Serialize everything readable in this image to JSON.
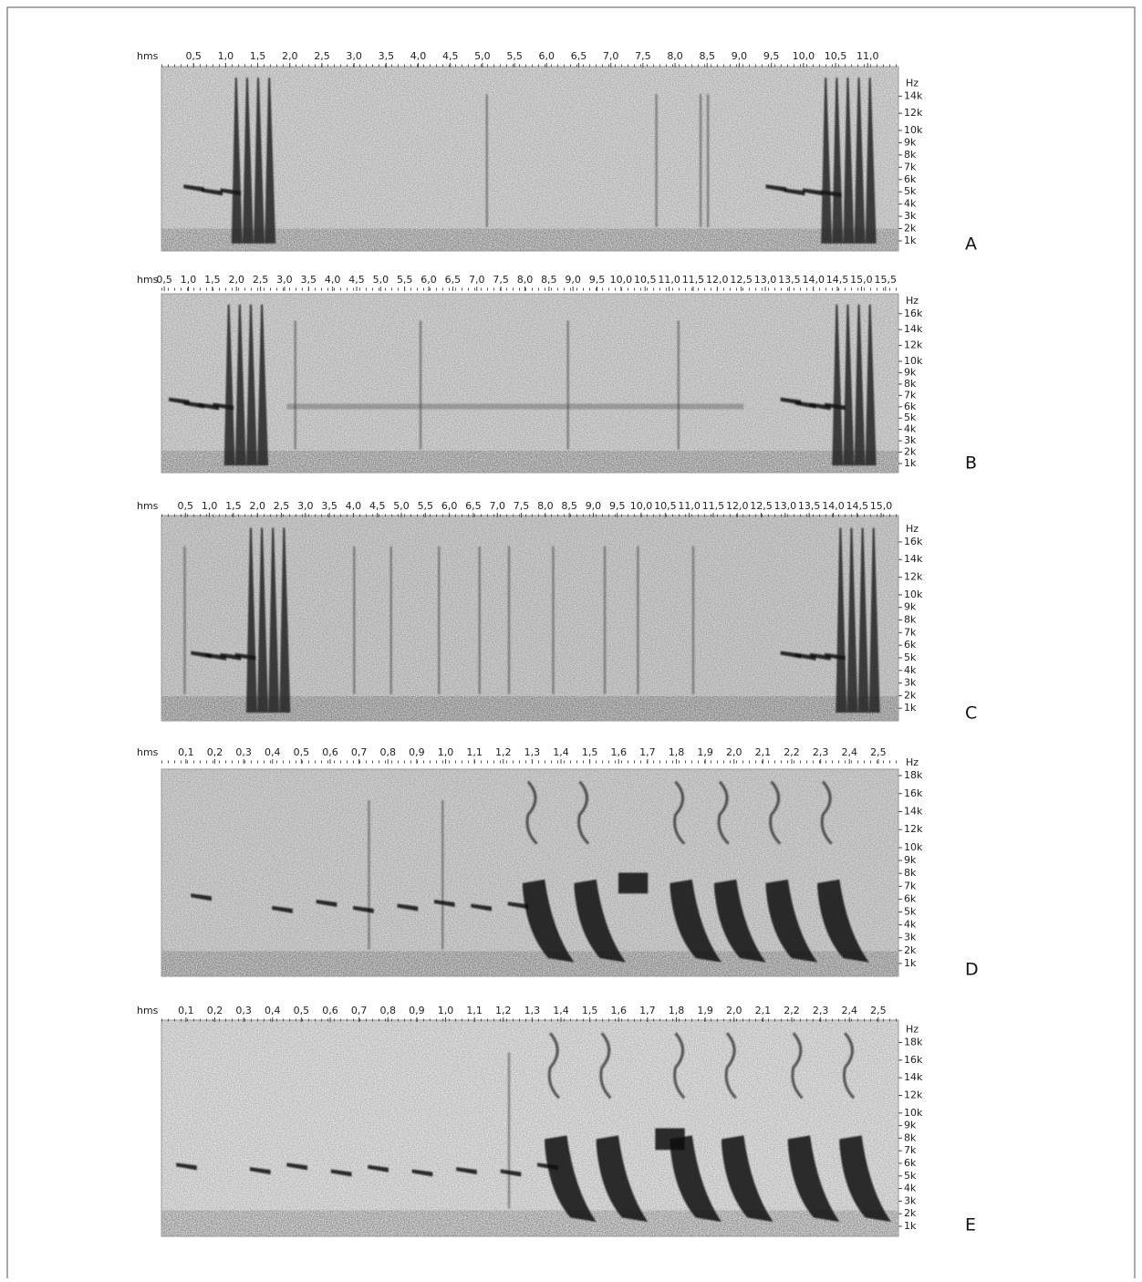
{
  "panels": [
    {
      "label": "A",
      "x_axis": {
        "title": "hms",
        "range": [
          0,
          11.48
        ],
        "ticks": [
          {
            "value": 0.5,
            "label": "0,5"
          },
          {
            "value": 1.0,
            "label": "1,0"
          },
          {
            "value": 1.5,
            "label": "1,5"
          },
          {
            "value": 2.0,
            "label": "2,0"
          },
          {
            "value": 2.5,
            "label": "2,5"
          },
          {
            "value": 3.0,
            "label": "3,0"
          },
          {
            "value": 3.5,
            "label": "3,5"
          },
          {
            "value": 4.0,
            "label": "4,0"
          },
          {
            "value": 4.5,
            "label": "4,5"
          },
          {
            "value": 5.0,
            "label": "5,0"
          },
          {
            "value": 5.5,
            "label": "5,5"
          },
          {
            "value": 6.0,
            "label": "6,0"
          },
          {
            "value": 6.5,
            "label": "6,5"
          },
          {
            "value": 7.0,
            "label": "7,0"
          },
          {
            "value": 7.5,
            "label": "7,5"
          },
          {
            "value": 8.0,
            "label": "8,0"
          },
          {
            "value": 8.5,
            "label": "8,5"
          },
          {
            "value": 9.0,
            "label": "9,0"
          },
          {
            "value": 9.5,
            "label": "9,5"
          },
          {
            "value": 10.0,
            "label": "10,0"
          },
          {
            "value": 10.5,
            "label": "10,5"
          },
          {
            "value": 11.0,
            "label": "11,0"
          }
        ]
      },
      "y_axis": {
        "title": "Hz",
        "range": [
          180,
          17440
        ],
        "ticks": [
          {
            "value": 1000,
            "label": "1k"
          },
          {
            "value": 2000,
            "label": "2k"
          },
          {
            "value": 3000,
            "label": "3k"
          },
          {
            "value": 4000,
            "label": "4k"
          },
          {
            "value": 5000,
            "label": "5k"
          },
          {
            "value": 6000,
            "label": "6k"
          },
          {
            "value": 7000,
            "label": "7k"
          },
          {
            "value": 8000,
            "label": "8k"
          },
          {
            "value": 9000,
            "label": "9k"
          },
          {
            "value": 10000,
            "label": "10k"
          },
          {
            "value": 12000,
            "label": "12k"
          },
          {
            "value": 14000,
            "label": "14k"
          }
        ]
      }
    },
    {
      "label": "B",
      "x_axis": {
        "title": "hms",
        "range": [
          0.44,
          15.77
        ],
        "ticks": [
          {
            "value": 0.5,
            "label": "0,5"
          },
          {
            "value": 1.0,
            "label": "1,0"
          },
          {
            "value": 1.5,
            "label": "1,5"
          },
          {
            "value": 2.0,
            "label": "2,0"
          },
          {
            "value": 2.5,
            "label": "2,5"
          },
          {
            "value": 3.0,
            "label": "3,0"
          },
          {
            "value": 3.5,
            "label": "3,5"
          },
          {
            "value": 4.0,
            "label": "4,0"
          },
          {
            "value": 4.5,
            "label": "4,5"
          },
          {
            "value": 5.0,
            "label": "5,0"
          },
          {
            "value": 5.5,
            "label": "5,5"
          },
          {
            "value": 6.0,
            "label": "6,0"
          },
          {
            "value": 6.5,
            "label": "6,5"
          },
          {
            "value": 7.0,
            "label": "7,0"
          },
          {
            "value": 7.5,
            "label": "7,5"
          },
          {
            "value": 8.0,
            "label": "8,0"
          },
          {
            "value": 8.5,
            "label": "8,5"
          },
          {
            "value": 9.0,
            "label": "9,0"
          },
          {
            "value": 9.5,
            "label": "9,5"
          },
          {
            "value": 10.0,
            "label": "10,0"
          },
          {
            "value": 10.5,
            "label": "10,5"
          },
          {
            "value": 11.0,
            "label": "11,0"
          },
          {
            "value": 11.5,
            "label": "11,5"
          },
          {
            "value": 12.0,
            "label": "12,0"
          },
          {
            "value": 12.5,
            "label": "12,5"
          },
          {
            "value": 13.0,
            "label": "13,0"
          },
          {
            "value": 13.5,
            "label": "13,5"
          },
          {
            "value": 14.0,
            "label": "14,0"
          },
          {
            "value": 14.5,
            "label": "14,5"
          },
          {
            "value": 15.0,
            "label": "15,0"
          },
          {
            "value": 15.5,
            "label": "15,5"
          }
        ]
      },
      "y_axis": {
        "title": "Hz",
        "range": [
          196,
          18500
        ],
        "ticks": [
          {
            "value": 1000,
            "label": "1k"
          },
          {
            "value": 2000,
            "label": "2k"
          },
          {
            "value": 3000,
            "label": "3k"
          },
          {
            "value": 4000,
            "label": "4k"
          },
          {
            "value": 5000,
            "label": "5k"
          },
          {
            "value": 6000,
            "label": "6k"
          },
          {
            "value": 7000,
            "label": "7k"
          },
          {
            "value": 8000,
            "label": "8k"
          },
          {
            "value": 9000,
            "label": "9k"
          },
          {
            "value": 10000,
            "label": "10k"
          },
          {
            "value": 12000,
            "label": "12k"
          },
          {
            "value": 14000,
            "label": "14k"
          },
          {
            "value": 16000,
            "label": "16k"
          }
        ]
      }
    },
    {
      "label": "C",
      "x_axis": {
        "title": "hms",
        "range": [
          0,
          15.36
        ],
        "ticks": [
          {
            "value": 0.5,
            "label": "0,5"
          },
          {
            "value": 1.0,
            "label": "1,0"
          },
          {
            "value": 1.5,
            "label": "1,5"
          },
          {
            "value": 2.0,
            "label": "2,0"
          },
          {
            "value": 2.5,
            "label": "2,5"
          },
          {
            "value": 3.0,
            "label": "3,0"
          },
          {
            "value": 3.5,
            "label": "3,5"
          },
          {
            "value": 4.0,
            "label": "4,0"
          },
          {
            "value": 4.5,
            "label": "4,5"
          },
          {
            "value": 5.0,
            "label": "5,0"
          },
          {
            "value": 5.5,
            "label": "5,5"
          },
          {
            "value": 6.0,
            "label": "6,0"
          },
          {
            "value": 6.5,
            "label": "6,5"
          },
          {
            "value": 7.0,
            "label": "7,0"
          },
          {
            "value": 7.5,
            "label": "7,5"
          },
          {
            "value": 8.0,
            "label": "8,0"
          },
          {
            "value": 8.5,
            "label": "8,5"
          },
          {
            "value": 9.0,
            "label": "9,0"
          },
          {
            "value": 9.5,
            "label": "9,5"
          },
          {
            "value": 10.0,
            "label": "10,0"
          },
          {
            "value": 10.5,
            "label": "10,5"
          },
          {
            "value": 11.0,
            "label": "11,0"
          },
          {
            "value": 11.5,
            "label": "11,5"
          },
          {
            "value": 12.0,
            "label": "12,0"
          },
          {
            "value": 12.5,
            "label": "12,5"
          },
          {
            "value": 13.0,
            "label": "13,0"
          },
          {
            "value": 13.5,
            "label": "13,5"
          },
          {
            "value": 14.0,
            "label": "14,0"
          },
          {
            "value": 14.5,
            "label": "14,5"
          },
          {
            "value": 15.0,
            "label": "15,0"
          }
        ]
      },
      "y_axis": {
        "title": "Hz",
        "range": [
          0,
          18990
        ],
        "ticks": [
          {
            "value": 1000,
            "label": "1k"
          },
          {
            "value": 2000,
            "label": "2k"
          },
          {
            "value": 3000,
            "label": "3k"
          },
          {
            "value": 4000,
            "label": "4k"
          },
          {
            "value": 5000,
            "label": "5k"
          },
          {
            "value": 6000,
            "label": "6k"
          },
          {
            "value": 7000,
            "label": "7k"
          },
          {
            "value": 8000,
            "label": "8k"
          },
          {
            "value": 9000,
            "label": "9k"
          },
          {
            "value": 10000,
            "label": "10k"
          },
          {
            "value": 12000,
            "label": "12k"
          },
          {
            "value": 14000,
            "label": "14k"
          },
          {
            "value": 16000,
            "label": "16k"
          }
        ]
      }
    },
    {
      "label": "D",
      "x_axis": {
        "title": "hms",
        "range": [
          0.015,
          2.57
        ],
        "ticks": [
          {
            "value": 0.1,
            "label": "0,1"
          },
          {
            "value": 0.2,
            "label": "0,2"
          },
          {
            "value": 0.3,
            "label": "0,3"
          },
          {
            "value": 0.4,
            "label": "0,4"
          },
          {
            "value": 0.5,
            "label": "0,5"
          },
          {
            "value": 0.6,
            "label": "0,6"
          },
          {
            "value": 0.7,
            "label": "0,7"
          },
          {
            "value": 0.8,
            "label": "0,8"
          },
          {
            "value": 0.9,
            "label": "0,9"
          },
          {
            "value": 1.0,
            "label": "1,0"
          },
          {
            "value": 1.1,
            "label": "1,1"
          },
          {
            "value": 1.2,
            "label": "1,2"
          },
          {
            "value": 1.3,
            "label": "1,3"
          },
          {
            "value": 1.4,
            "label": "1,4"
          },
          {
            "value": 1.5,
            "label": "1,5"
          },
          {
            "value": 1.6,
            "label": "1,6"
          },
          {
            "value": 1.7,
            "label": "1,7"
          },
          {
            "value": 1.8,
            "label": "1,8"
          },
          {
            "value": 1.9,
            "label": "1,9"
          },
          {
            "value": 2.0,
            "label": "2,0"
          },
          {
            "value": 2.1,
            "label": "2,1"
          },
          {
            "value": 2.2,
            "label": "2,2"
          },
          {
            "value": 2.3,
            "label": "2,3"
          },
          {
            "value": 2.4,
            "label": "2,4"
          },
          {
            "value": 2.5,
            "label": "2,5"
          }
        ]
      },
      "y_axis": {
        "title": "Hz",
        "range": [
          0,
          18710
        ],
        "ticks": [
          {
            "value": 1000,
            "label": "1k"
          },
          {
            "value": 2000,
            "label": "2k"
          },
          {
            "value": 3000,
            "label": "3k"
          },
          {
            "value": 4000,
            "label": "4k"
          },
          {
            "value": 5000,
            "label": "5k"
          },
          {
            "value": 6000,
            "label": "6k"
          },
          {
            "value": 7000,
            "label": "7k"
          },
          {
            "value": 8000,
            "label": "8k"
          },
          {
            "value": 9000,
            "label": "9k"
          },
          {
            "value": 10000,
            "label": "10k"
          },
          {
            "value": 12000,
            "label": "12k"
          },
          {
            "value": 14000,
            "label": "14k"
          },
          {
            "value": 16000,
            "label": "16k"
          },
          {
            "value": 18000,
            "label": "18k"
          }
        ]
      }
    },
    {
      "label": "E",
      "x_axis": {
        "title": "hms",
        "range": [
          0.015,
          2.57
        ],
        "ticks": [
          {
            "value": 0.1,
            "label": "0,1"
          },
          {
            "value": 0.2,
            "label": "0,2"
          },
          {
            "value": 0.3,
            "label": "0,3"
          },
          {
            "value": 0.4,
            "label": "0,4"
          },
          {
            "value": 0.5,
            "label": "0,5"
          },
          {
            "value": 0.6,
            "label": "0,6"
          },
          {
            "value": 0.7,
            "label": "0,7"
          },
          {
            "value": 0.8,
            "label": "0,8"
          },
          {
            "value": 0.9,
            "label": "0,9"
          },
          {
            "value": 1.0,
            "label": "1,0"
          },
          {
            "value": 1.1,
            "label": "1,1"
          },
          {
            "value": 1.2,
            "label": "1,2"
          },
          {
            "value": 1.3,
            "label": "1,3"
          },
          {
            "value": 1.4,
            "label": "1,4"
          },
          {
            "value": 1.5,
            "label": "1,5"
          },
          {
            "value": 1.6,
            "label": "1,6"
          },
          {
            "value": 1.7,
            "label": "1,7"
          },
          {
            "value": 1.8,
            "label": "1,8"
          },
          {
            "value": 1.9,
            "label": "1,9"
          },
          {
            "value": 2.0,
            "label": "2,0"
          },
          {
            "value": 2.1,
            "label": "2,1"
          },
          {
            "value": 2.2,
            "label": "2,2"
          },
          {
            "value": 2.3,
            "label": "2,3"
          },
          {
            "value": 2.4,
            "label": "2,4"
          },
          {
            "value": 2.5,
            "label": "2,5"
          }
        ]
      },
      "y_axis": {
        "title": "Hz",
        "range": [
          200,
          20540
        ],
        "ticks": [
          {
            "value": 1000,
            "label": "1k"
          },
          {
            "value": 2000,
            "label": "2k"
          },
          {
            "value": 3000,
            "label": "3k"
          },
          {
            "value": 4000,
            "label": "4k"
          },
          {
            "value": 5000,
            "label": "5k"
          },
          {
            "value": 6000,
            "label": "6k"
          },
          {
            "value": 7000,
            "label": "7k"
          },
          {
            "value": 8000,
            "label": "8k"
          },
          {
            "value": 9000,
            "label": "9k"
          },
          {
            "value": 10000,
            "label": "10k"
          },
          {
            "value": 12000,
            "label": "12k"
          },
          {
            "value": 14000,
            "label": "14k"
          },
          {
            "value": 16000,
            "label": "16k"
          },
          {
            "value": 18000,
            "label": "18k"
          }
        ]
      }
    }
  ]
}
